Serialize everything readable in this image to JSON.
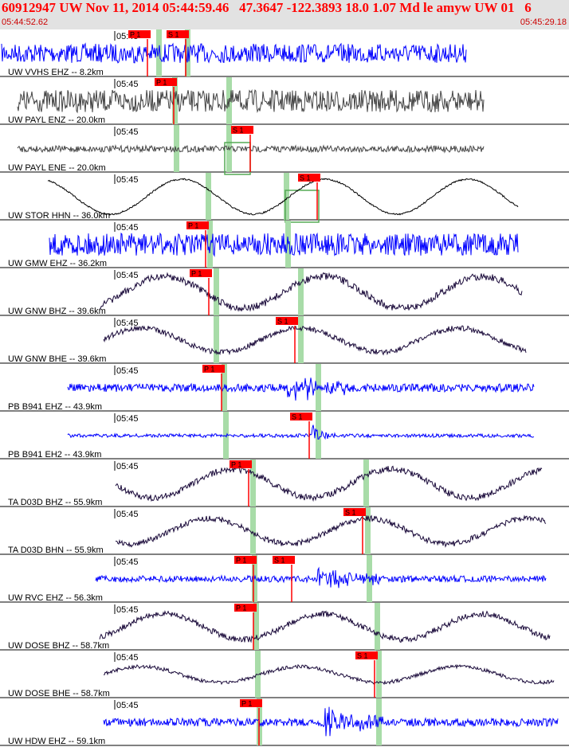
{
  "header": {
    "event_title": "60912947 UW Nov 11, 2014 05:44:59.46   47.3647 -122.3893 18.0 1.07 Md le amyw UW 01   6",
    "start_time": "05:44:52.62",
    "end_time": "05:45:29.18"
  },
  "colors": {
    "header_bg": "#e2e2e2",
    "header_text": "#ff0000",
    "blue_trace": "#0000ff",
    "dark_trace": "#1a0a3a",
    "gray_trace": "#444444",
    "black_trace": "#000000",
    "pick_red": "#ff0000",
    "window_green": "#a8dca8"
  },
  "chart_data": {
    "type": "seismogram",
    "tick_label": "05:45",
    "traces": [
      {
        "label": "UW VVHS EHZ -- 8.2km",
        "picks": [
          "P 1",
          "S 1"
        ],
        "style": "blue"
      },
      {
        "label": "UW PAYL ENZ -- 20.0km",
        "picks": [
          "P 1"
        ],
        "style": "gray"
      },
      {
        "label": "UW PAYL ENE -- 20.0km",
        "picks": [
          "S 1"
        ],
        "style": "gray"
      },
      {
        "label": "UW STOR HHN -- 36.0km",
        "picks": [
          "S 1"
        ],
        "style": "black"
      },
      {
        "label": "UW GMW EHZ -- 36.2km",
        "picks": [
          "P 1"
        ],
        "style": "blue"
      },
      {
        "label": "UW GNW BHZ -- 39.6km",
        "picks": [
          "P 1"
        ],
        "style": "dark"
      },
      {
        "label": "UW GNW BHE -- 39.6km",
        "picks": [
          "S 1"
        ],
        "style": "dark"
      },
      {
        "label": "PB B941 EHZ -- 43.9km",
        "picks": [
          "P 1"
        ],
        "style": "blue"
      },
      {
        "label": "PB B941 EH2 -- 43.9km",
        "picks": [
          "S 1"
        ],
        "style": "blue"
      },
      {
        "label": "TA D03D BHZ -- 55.9km",
        "picks": [
          "P 1"
        ],
        "style": "dark"
      },
      {
        "label": "TA D03D BHN -- 55.9km",
        "picks": [
          "S 1"
        ],
        "style": "dark"
      },
      {
        "label": "UW RVC EHZ -- 56.3km",
        "picks": [
          "P 1",
          "S 1"
        ],
        "style": "blue"
      },
      {
        "label": "UW DOSE BHZ -- 58.7km",
        "picks": [
          "P 1"
        ],
        "style": "dark"
      },
      {
        "label": "UW DOSE BHE -- 58.7km",
        "picks": [
          "S 1"
        ],
        "style": "dark"
      },
      {
        "label": "UW HDW EHZ -- 59.1km",
        "picks": [
          "P 1"
        ],
        "style": "blue"
      }
    ]
  }
}
